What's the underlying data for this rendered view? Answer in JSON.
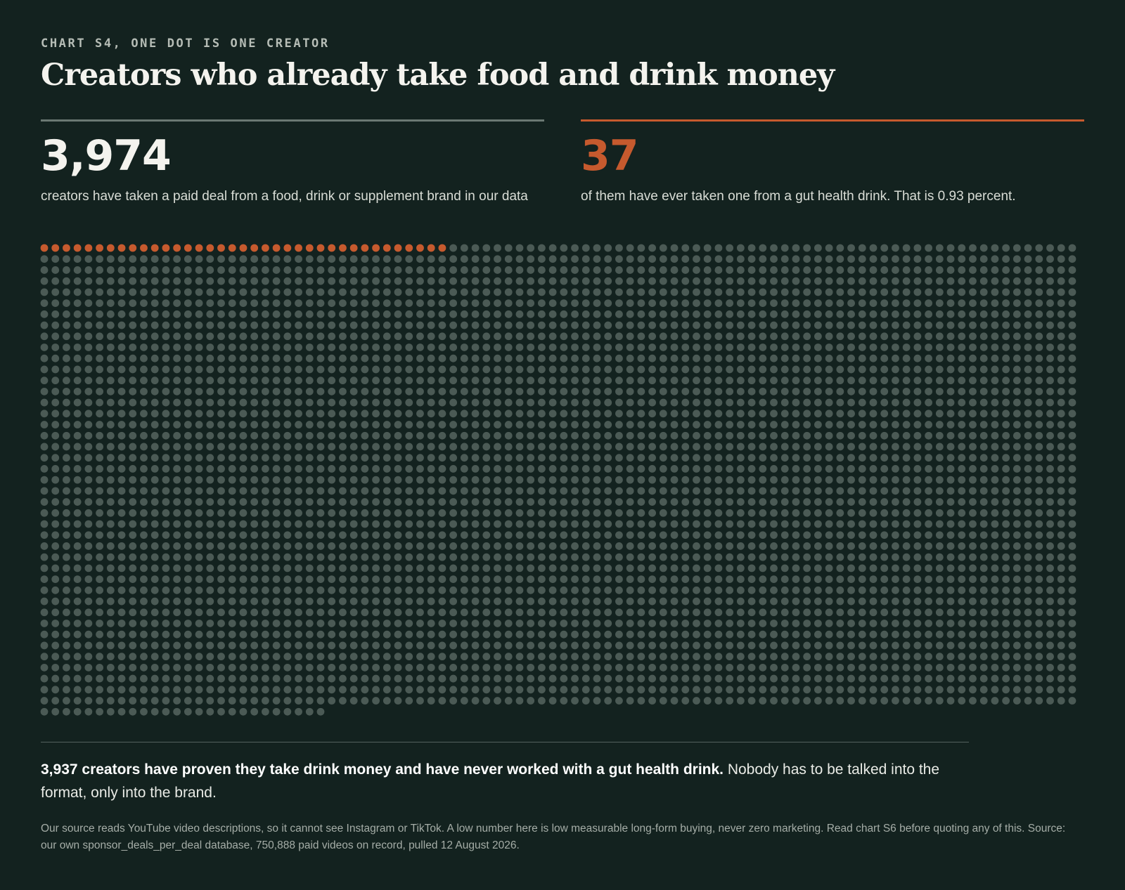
{
  "eyebrow": "CHART S4, ONE DOT IS ONE CREATOR",
  "title": "Creators who already take food and drink money",
  "stats": {
    "total_value": "3,974",
    "total_desc": "creators have taken a paid deal from a food, drink or supplement brand in our data",
    "highlight_value": "37",
    "highlight_desc": "of them have ever taken one from a gut health drink. That is 0.93 percent."
  },
  "summary": {
    "bold": "3,937 creators have proven they take drink money and have never worked with a gut health drink.",
    "rest": " Nobody has to be talked into the format, only into the brand."
  },
  "footnote": "Our source reads YouTube video descriptions, so it cannot see Instagram or TikTok. A low number here is low measurable long-form buying, never zero marketing. Read chart S6 before quoting any of this. Source: our own sponsor_deals_per_deal database, 750,888 paid videos on record, pulled 12 August 2026.",
  "colors": {
    "background": "#13221f",
    "highlight": "#c65a2e",
    "dot": "#4b5a55"
  },
  "chart_data": {
    "type": "waffle",
    "unit": "creator",
    "total": 3974,
    "series": [
      {
        "name": "gut health drink",
        "value": 37,
        "color": "#c65a2e"
      },
      {
        "name": "never worked with a gut health drink",
        "value": 3937,
        "color": "#4b5a55"
      }
    ]
  }
}
